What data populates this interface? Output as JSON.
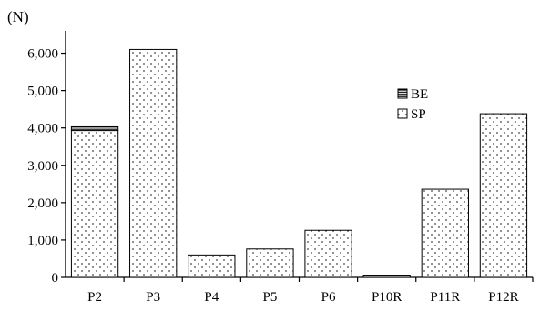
{
  "chart_data": {
    "type": "bar",
    "stacked": true,
    "unit_label": "(N)",
    "categories": [
      "P2",
      "P3",
      "P4",
      "P5",
      "P6",
      "P10R",
      "P11R",
      "P12R"
    ],
    "series": [
      {
        "name": "SP",
        "pattern": "dots",
        "values": [
          3930,
          6100,
          600,
          760,
          1260,
          60,
          2360,
          4380
        ]
      },
      {
        "name": "BE",
        "pattern": "horizontal-stripes",
        "values": [
          100,
          0,
          0,
          0,
          0,
          0,
          0,
          0
        ]
      }
    ],
    "ylim": [
      0,
      6500
    ],
    "yticks": [
      0,
      1000,
      2000,
      3000,
      4000,
      5000,
      6000
    ],
    "ytick_labels": [
      "0",
      "1,000",
      "2,000",
      "3,000",
      "4,000",
      "5,000",
      "6,000"
    ],
    "grid": false,
    "legend": {
      "position": "upper-right",
      "order": [
        "BE",
        "SP"
      ]
    },
    "colors": {
      "stroke": "#000000",
      "fill": "#ffffff",
      "dot": "#444444"
    }
  }
}
